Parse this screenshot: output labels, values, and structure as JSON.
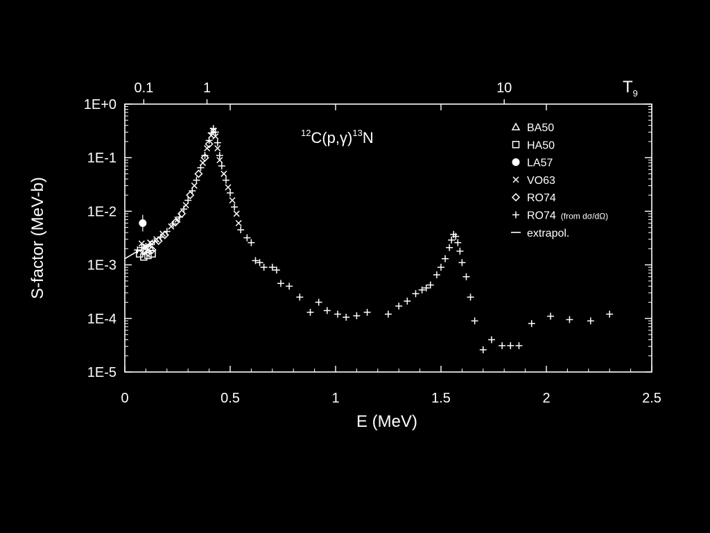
{
  "chart_data": {
    "type": "scatter",
    "title": {
      "pre": "12",
      "a": "C(p,",
      "gamma": "γ",
      "b": ")",
      "post": "13",
      "c": "N"
    },
    "xlabel": "E (MeV)",
    "ylabel": "S-factor (MeV-b)",
    "top_axis_label": "T",
    "top_axis_label_sub": "9",
    "xlim": [
      0,
      2.5
    ],
    "ylim": [
      1e-05,
      1
    ],
    "yscale": "log",
    "x_ticks": [
      {
        "v": 0,
        "label": "0"
      },
      {
        "v": 0.5,
        "label": "0.5"
      },
      {
        "v": 1,
        "label": "1"
      },
      {
        "v": 1.5,
        "label": "1.5"
      },
      {
        "v": 2,
        "label": "2"
      },
      {
        "v": 2.5,
        "label": "2.5"
      }
    ],
    "y_ticks": [
      {
        "v": 1,
        "label": "1E+0"
      },
      {
        "v": 0.1,
        "label": "1E-1"
      },
      {
        "v": 0.01,
        "label": "1E-2"
      },
      {
        "v": 0.001,
        "label": "1E-3"
      },
      {
        "v": 0.0001,
        "label": "1E-4"
      },
      {
        "v": 1e-05,
        "label": "1E-5"
      }
    ],
    "top_ticks": [
      {
        "E": 0.09,
        "label": "0.1"
      },
      {
        "E": 0.39,
        "label": "1"
      },
      {
        "E": 1.8,
        "label": "10"
      }
    ],
    "legend": [
      {
        "label": "BA50",
        "marker": "triangle"
      },
      {
        "label": "HA50",
        "marker": "square"
      },
      {
        "label": "LA57",
        "marker": "dot"
      },
      {
        "label": "VO63",
        "marker": "x"
      },
      {
        "label": "RO74",
        "marker": "diamond"
      },
      {
        "label": "RO74",
        "note": "(from dσ/dΩ)",
        "marker": "plus"
      },
      {
        "label": "extrapol.",
        "marker": "line"
      }
    ],
    "legend_position": "top-right",
    "grid": false,
    "series": [
      {
        "marker": "plus",
        "points": [
          [
            0.06,
            0.0019
          ],
          [
            0.08,
            0.0021
          ],
          [
            0.1,
            0.0022
          ],
          [
            0.12,
            0.0024
          ],
          [
            0.14,
            0.0027
          ],
          [
            0.17,
            0.0033
          ],
          [
            0.2,
            0.0042
          ],
          [
            0.23,
            0.0058
          ],
          [
            0.26,
            0.0078
          ],
          [
            0.28,
            0.011
          ],
          [
            0.3,
            0.016
          ],
          [
            0.32,
            0.024
          ],
          [
            0.34,
            0.038
          ],
          [
            0.36,
            0.065
          ],
          [
            0.38,
            0.11
          ],
          [
            0.4,
            0.21
          ],
          [
            0.41,
            0.29
          ],
          [
            0.42,
            0.35
          ],
          [
            0.43,
            0.3
          ],
          [
            0.44,
            0.19
          ],
          [
            0.45,
            0.11
          ],
          [
            0.46,
            0.07
          ],
          [
            0.48,
            0.038
          ],
          [
            0.5,
            0.022
          ],
          [
            0.52,
            0.012
          ],
          [
            0.55,
            0.0045
          ],
          [
            0.58,
            0.0032
          ],
          [
            0.6,
            0.0026
          ],
          [
            0.62,
            0.0012
          ],
          [
            0.64,
            0.0011
          ],
          [
            0.66,
            0.0009
          ],
          [
            0.7,
            0.0009
          ],
          [
            0.72,
            0.0008
          ],
          [
            0.74,
            0.00045
          ],
          [
            0.78,
            0.0004
          ],
          [
            0.83,
            0.00025
          ],
          [
            0.88,
            0.00013
          ],
          [
            0.92,
            0.0002
          ],
          [
            0.96,
            0.00014
          ],
          [
            1.01,
            0.00012
          ],
          [
            1.05,
            0.000105
          ],
          [
            1.1,
            0.000112
          ],
          [
            1.15,
            0.00013
          ],
          [
            1.25,
            0.00012
          ],
          [
            1.3,
            0.00017
          ],
          [
            1.34,
            0.00021
          ],
          [
            1.38,
            0.00029
          ],
          [
            1.41,
            0.00034
          ],
          [
            1.43,
            0.00037
          ],
          [
            1.45,
            0.00042
          ],
          [
            1.48,
            0.00065
          ],
          [
            1.5,
            0.0009
          ],
          [
            1.52,
            0.0013
          ],
          [
            1.54,
            0.0021
          ],
          [
            1.55,
            0.0029
          ],
          [
            1.56,
            0.0037
          ],
          [
            1.57,
            0.0034
          ],
          [
            1.58,
            0.0026
          ],
          [
            1.59,
            0.0018
          ],
          [
            1.6,
            0.0011
          ],
          [
            1.62,
            0.0006
          ],
          [
            1.64,
            0.00025
          ],
          [
            1.66,
            9e-05
          ],
          [
            1.7,
            2.6e-05
          ],
          [
            1.74,
            4e-05
          ],
          [
            1.79,
            3.1e-05
          ],
          [
            1.83,
            3.1e-05
          ],
          [
            1.87,
            3.1e-05
          ],
          [
            1.93,
            8e-05
          ],
          [
            2.02,
            0.00011
          ],
          [
            2.11,
            9.5e-05
          ],
          [
            2.21,
            9e-05
          ],
          [
            2.3,
            0.00012
          ]
        ]
      },
      {
        "marker": "x",
        "points": [
          [
            0.08,
            0.0025
          ],
          [
            0.1,
            0.0022
          ],
          [
            0.12,
            0.0026
          ],
          [
            0.15,
            0.003
          ],
          [
            0.18,
            0.0038
          ],
          [
            0.22,
            0.0052
          ],
          [
            0.25,
            0.007
          ],
          [
            0.29,
            0.013
          ],
          [
            0.33,
            0.03
          ],
          [
            0.37,
            0.08
          ],
          [
            0.39,
            0.15
          ],
          [
            0.41,
            0.26
          ],
          [
            0.42,
            0.32
          ],
          [
            0.43,
            0.25
          ],
          [
            0.44,
            0.15
          ],
          [
            0.45,
            0.09
          ],
          [
            0.47,
            0.05
          ],
          [
            0.49,
            0.028
          ],
          [
            0.51,
            0.016
          ],
          [
            0.53,
            0.009
          ],
          [
            0.54,
            0.006
          ]
        ]
      },
      {
        "marker": "diamond",
        "points": [
          [
            0.09,
            0.0018
          ],
          [
            0.11,
            0.0017
          ],
          [
            0.13,
            0.0019
          ],
          [
            0.16,
            0.0028
          ],
          [
            0.19,
            0.0036
          ],
          [
            0.24,
            0.0062
          ],
          [
            0.27,
            0.009
          ],
          [
            0.31,
            0.02
          ],
          [
            0.35,
            0.05
          ],
          [
            0.38,
            0.1
          ],
          [
            0.4,
            0.18
          ]
        ]
      },
      {
        "marker": "square",
        "points": [
          [
            0.07,
            0.0016
          ],
          [
            0.09,
            0.0014
          ],
          [
            0.11,
            0.0015
          ],
          [
            0.13,
            0.0016
          ]
        ]
      },
      {
        "marker": "triangle",
        "points": [
          [
            0.1,
            0.0019
          ],
          [
            0.12,
            0.0021
          ]
        ]
      },
      {
        "marker": "dot",
        "points": [
          [
            0.085,
            0.006
          ]
        ]
      },
      {
        "marker": "line",
        "points": [
          [
            0.0,
            0.0013
          ],
          [
            0.05,
            0.0017
          ],
          [
            0.1,
            0.0021
          ],
          [
            0.15,
            0.0028
          ]
        ]
      }
    ]
  }
}
